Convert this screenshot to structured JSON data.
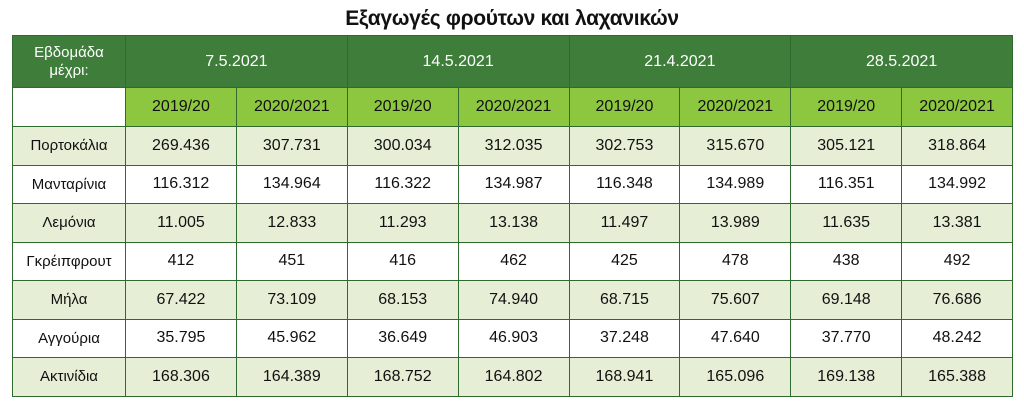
{
  "title": "Εξαγωγές φρούτων και λαχανικών",
  "table": {
    "corner": "Εβδομάδα μέχρι:",
    "dates": [
      "7.5.2021",
      "14.5.2021",
      "21.4.2021",
      "28.5.2021"
    ],
    "periods": [
      "2019/20",
      "2020/2021",
      "2019/20",
      "2020/2021",
      "2019/20",
      "2020/2021",
      "2019/20",
      "2020/2021"
    ],
    "rows": [
      {
        "label": "Πορτοκάλια",
        "values": [
          "269.436",
          "307.731",
          "300.034",
          "312.035",
          "302.753",
          "315.670",
          "305.121",
          "318.864"
        ]
      },
      {
        "label": "Μανταρίνια",
        "values": [
          "116.312",
          "134.964",
          "116.322",
          "134.987",
          "116.348",
          "134.989",
          "116.351",
          "134.992"
        ]
      },
      {
        "label": "Λεμόνια",
        "values": [
          "11.005",
          "12.833",
          "11.293",
          "13.138",
          "11.497",
          "13.989",
          "11.635",
          "13.381"
        ]
      },
      {
        "label": "Γκρέιπφρουτ",
        "values": [
          "412",
          "451",
          "416",
          "462",
          "425",
          "478",
          "438",
          "492"
        ]
      },
      {
        "label": "Μήλα",
        "values": [
          "67.422",
          "73.109",
          "68.153",
          "74.940",
          "68.715",
          "75.607",
          "69.148",
          "76.686"
        ]
      },
      {
        "label": "Αγγούρια",
        "values": [
          "35.795",
          "45.962",
          "36.649",
          "46.903",
          "37.248",
          "47.640",
          "37.770",
          "48.242"
        ]
      },
      {
        "label": "Ακτινίδια",
        "values": [
          "168.306",
          "164.389",
          "168.752",
          "164.802",
          "168.941",
          "165.096",
          "169.138",
          "165.388"
        ]
      }
    ]
  }
}
